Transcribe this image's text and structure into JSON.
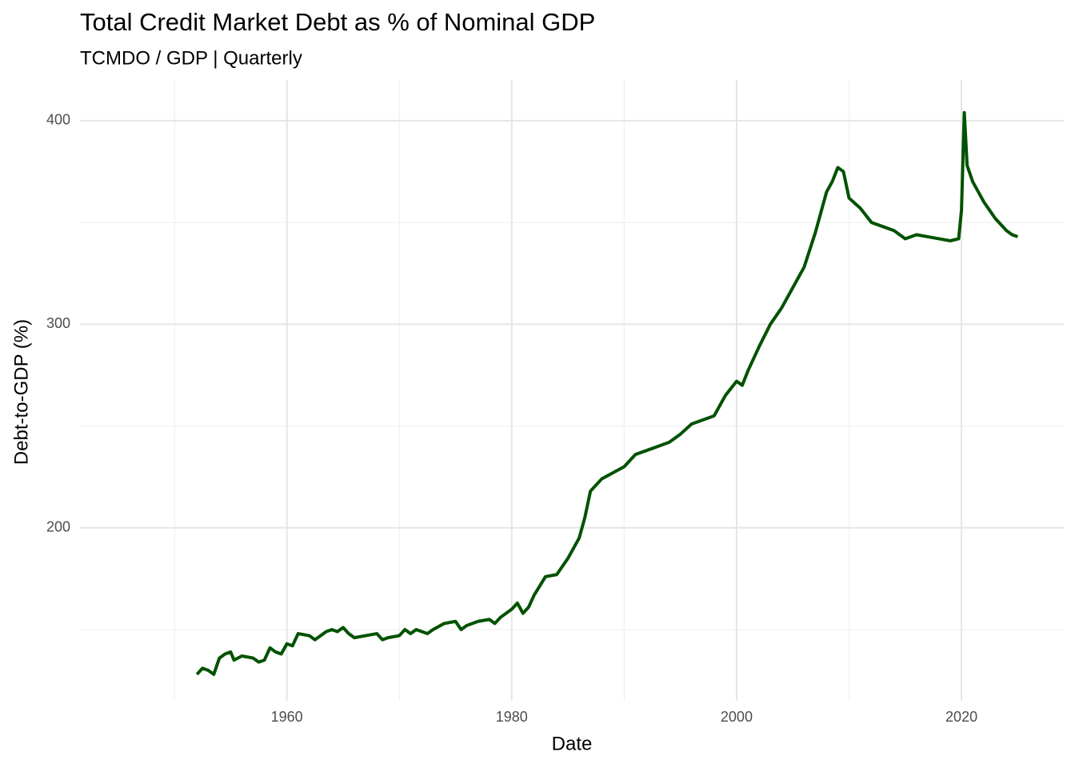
{
  "chart_data": {
    "type": "line",
    "title": "Total Credit Market Debt as % of Nominal GDP",
    "subtitle": "TCMDO / GDP | Quarterly",
    "x_label": "Date",
    "y_label": "Debt-to-GDP (%)",
    "x": [
      1952,
      1952.5,
      1953,
      1953.5,
      1954,
      1954.5,
      1955,
      1955.3,
      1956,
      1957,
      1957.5,
      1958,
      1958.5,
      1959,
      1959.5,
      1960,
      1960.5,
      1961,
      1962,
      1962.5,
      1963,
      1963.5,
      1964,
      1964.5,
      1965,
      1965.5,
      1966,
      1967,
      1968,
      1968.5,
      1969,
      1970,
      1970.5,
      1971,
      1971.5,
      1972,
      1972.5,
      1973,
      1974,
      1975,
      1975.5,
      1976,
      1977,
      1978,
      1978.5,
      1979,
      1980,
      1980.5,
      1981,
      1981.5,
      1982,
      1983,
      1984,
      1985,
      1986,
      1986.5,
      1987,
      1988,
      1989,
      1990,
      1991,
      1992,
      1993,
      1994,
      1995,
      1996,
      1997,
      1998,
      1999,
      2000,
      2000.5,
      2001,
      2002,
      2003,
      2004,
      2005,
      2006,
      2007,
      2008,
      2008.5,
      2009,
      2009.5,
      2010,
      2011,
      2012,
      2013,
      2014,
      2015,
      2016,
      2017,
      2018,
      2019,
      2019.75,
      2020,
      2020.25,
      2020.5,
      2021,
      2022,
      2023,
      2024,
      2024.5,
      2025
    ],
    "series": [
      {
        "name": "Debt-to-GDP",
        "color": "#005200",
        "values": [
          128,
          131,
          130,
          128,
          136,
          138,
          139,
          135,
          137,
          136,
          134,
          135,
          141,
          139,
          138,
          143,
          142,
          148,
          147,
          145,
          147,
          149,
          150,
          149,
          151,
          148,
          146,
          147,
          148,
          145,
          146,
          147,
          150,
          148,
          150,
          149,
          148,
          150,
          153,
          154,
          150,
          152,
          154,
          155,
          153,
          156,
          160,
          163,
          158,
          161,
          167,
          176,
          177,
          185,
          195,
          205,
          218,
          224,
          227,
          230,
          236,
          238,
          240,
          242,
          246,
          251,
          253,
          255,
          265,
          272,
          270,
          277,
          289,
          300,
          308,
          318,
          328,
          345,
          365,
          370,
          377,
          375,
          362,
          357,
          350,
          348,
          346,
          342,
          344,
          343,
          342,
          341,
          342,
          356,
          404,
          378,
          370,
          360,
          352,
          346,
          344,
          343
        ]
      }
    ],
    "xlim": [
      1941.6,
      2029.1
    ],
    "ylim": [
      115,
      420
    ],
    "xticks": [
      1960,
      1980,
      2000,
      2020
    ],
    "yticks": [
      200,
      300,
      400
    ],
    "xminor": [
      1950,
      1970,
      1990,
      2010
    ],
    "yminor": [
      150,
      250,
      350
    ],
    "grid": true
  }
}
